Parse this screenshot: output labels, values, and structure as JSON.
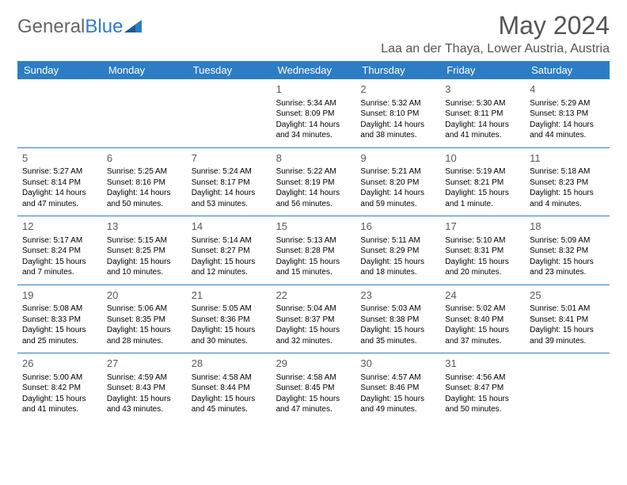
{
  "logo": {
    "text_gray": "General",
    "text_blue": "Blue"
  },
  "title": "May 2024",
  "location": "Laa an der Thaya, Lower Austria, Austria",
  "header_bg": "#2d7dc4",
  "header_fg": "#ffffff",
  "day_names": [
    "Sunday",
    "Monday",
    "Tuesday",
    "Wednesday",
    "Thursday",
    "Friday",
    "Saturday"
  ],
  "weeks": [
    [
      null,
      null,
      null,
      {
        "n": "1",
        "sr": "Sunrise: 5:34 AM",
        "ss": "Sunset: 8:09 PM",
        "d1": "Daylight: 14 hours",
        "d2": "and 34 minutes."
      },
      {
        "n": "2",
        "sr": "Sunrise: 5:32 AM",
        "ss": "Sunset: 8:10 PM",
        "d1": "Daylight: 14 hours",
        "d2": "and 38 minutes."
      },
      {
        "n": "3",
        "sr": "Sunrise: 5:30 AM",
        "ss": "Sunset: 8:11 PM",
        "d1": "Daylight: 14 hours",
        "d2": "and 41 minutes."
      },
      {
        "n": "4",
        "sr": "Sunrise: 5:29 AM",
        "ss": "Sunset: 8:13 PM",
        "d1": "Daylight: 14 hours",
        "d2": "and 44 minutes."
      }
    ],
    [
      {
        "n": "5",
        "sr": "Sunrise: 5:27 AM",
        "ss": "Sunset: 8:14 PM",
        "d1": "Daylight: 14 hours",
        "d2": "and 47 minutes."
      },
      {
        "n": "6",
        "sr": "Sunrise: 5:25 AM",
        "ss": "Sunset: 8:16 PM",
        "d1": "Daylight: 14 hours",
        "d2": "and 50 minutes."
      },
      {
        "n": "7",
        "sr": "Sunrise: 5:24 AM",
        "ss": "Sunset: 8:17 PM",
        "d1": "Daylight: 14 hours",
        "d2": "and 53 minutes."
      },
      {
        "n": "8",
        "sr": "Sunrise: 5:22 AM",
        "ss": "Sunset: 8:19 PM",
        "d1": "Daylight: 14 hours",
        "d2": "and 56 minutes."
      },
      {
        "n": "9",
        "sr": "Sunrise: 5:21 AM",
        "ss": "Sunset: 8:20 PM",
        "d1": "Daylight: 14 hours",
        "d2": "and 59 minutes."
      },
      {
        "n": "10",
        "sr": "Sunrise: 5:19 AM",
        "ss": "Sunset: 8:21 PM",
        "d1": "Daylight: 15 hours",
        "d2": "and 1 minute."
      },
      {
        "n": "11",
        "sr": "Sunrise: 5:18 AM",
        "ss": "Sunset: 8:23 PM",
        "d1": "Daylight: 15 hours",
        "d2": "and 4 minutes."
      }
    ],
    [
      {
        "n": "12",
        "sr": "Sunrise: 5:17 AM",
        "ss": "Sunset: 8:24 PM",
        "d1": "Daylight: 15 hours",
        "d2": "and 7 minutes."
      },
      {
        "n": "13",
        "sr": "Sunrise: 5:15 AM",
        "ss": "Sunset: 8:25 PM",
        "d1": "Daylight: 15 hours",
        "d2": "and 10 minutes."
      },
      {
        "n": "14",
        "sr": "Sunrise: 5:14 AM",
        "ss": "Sunset: 8:27 PM",
        "d1": "Daylight: 15 hours",
        "d2": "and 12 minutes."
      },
      {
        "n": "15",
        "sr": "Sunrise: 5:13 AM",
        "ss": "Sunset: 8:28 PM",
        "d1": "Daylight: 15 hours",
        "d2": "and 15 minutes."
      },
      {
        "n": "16",
        "sr": "Sunrise: 5:11 AM",
        "ss": "Sunset: 8:29 PM",
        "d1": "Daylight: 15 hours",
        "d2": "and 18 minutes."
      },
      {
        "n": "17",
        "sr": "Sunrise: 5:10 AM",
        "ss": "Sunset: 8:31 PM",
        "d1": "Daylight: 15 hours",
        "d2": "and 20 minutes."
      },
      {
        "n": "18",
        "sr": "Sunrise: 5:09 AM",
        "ss": "Sunset: 8:32 PM",
        "d1": "Daylight: 15 hours",
        "d2": "and 23 minutes."
      }
    ],
    [
      {
        "n": "19",
        "sr": "Sunrise: 5:08 AM",
        "ss": "Sunset: 8:33 PM",
        "d1": "Daylight: 15 hours",
        "d2": "and 25 minutes."
      },
      {
        "n": "20",
        "sr": "Sunrise: 5:06 AM",
        "ss": "Sunset: 8:35 PM",
        "d1": "Daylight: 15 hours",
        "d2": "and 28 minutes."
      },
      {
        "n": "21",
        "sr": "Sunrise: 5:05 AM",
        "ss": "Sunset: 8:36 PM",
        "d1": "Daylight: 15 hours",
        "d2": "and 30 minutes."
      },
      {
        "n": "22",
        "sr": "Sunrise: 5:04 AM",
        "ss": "Sunset: 8:37 PM",
        "d1": "Daylight: 15 hours",
        "d2": "and 32 minutes."
      },
      {
        "n": "23",
        "sr": "Sunrise: 5:03 AM",
        "ss": "Sunset: 8:38 PM",
        "d1": "Daylight: 15 hours",
        "d2": "and 35 minutes."
      },
      {
        "n": "24",
        "sr": "Sunrise: 5:02 AM",
        "ss": "Sunset: 8:40 PM",
        "d1": "Daylight: 15 hours",
        "d2": "and 37 minutes."
      },
      {
        "n": "25",
        "sr": "Sunrise: 5:01 AM",
        "ss": "Sunset: 8:41 PM",
        "d1": "Daylight: 15 hours",
        "d2": "and 39 minutes."
      }
    ],
    [
      {
        "n": "26",
        "sr": "Sunrise: 5:00 AM",
        "ss": "Sunset: 8:42 PM",
        "d1": "Daylight: 15 hours",
        "d2": "and 41 minutes."
      },
      {
        "n": "27",
        "sr": "Sunrise: 4:59 AM",
        "ss": "Sunset: 8:43 PM",
        "d1": "Daylight: 15 hours",
        "d2": "and 43 minutes."
      },
      {
        "n": "28",
        "sr": "Sunrise: 4:58 AM",
        "ss": "Sunset: 8:44 PM",
        "d1": "Daylight: 15 hours",
        "d2": "and 45 minutes."
      },
      {
        "n": "29",
        "sr": "Sunrise: 4:58 AM",
        "ss": "Sunset: 8:45 PM",
        "d1": "Daylight: 15 hours",
        "d2": "and 47 minutes."
      },
      {
        "n": "30",
        "sr": "Sunrise: 4:57 AM",
        "ss": "Sunset: 8:46 PM",
        "d1": "Daylight: 15 hours",
        "d2": "and 49 minutes."
      },
      {
        "n": "31",
        "sr": "Sunrise: 4:56 AM",
        "ss": "Sunset: 8:47 PM",
        "d1": "Daylight: 15 hours",
        "d2": "and 50 minutes."
      },
      null
    ]
  ]
}
